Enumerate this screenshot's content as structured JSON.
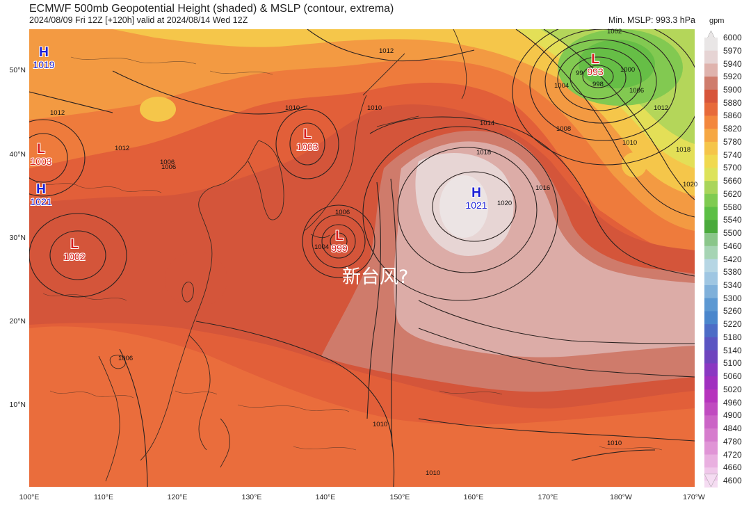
{
  "header": {
    "title": "ECMWF 500mb Geopotential Height (shaded) & MSLP (contour, extrema)",
    "subtitle": "2024/08/09 Fri 12Z [+120h] valid at 2024/08/14 Wed 12Z",
    "min_mslp": "Min. MSLP: 993.3 hPa"
  },
  "colorbar": {
    "unit": "gpm",
    "levels": [
      "6000",
      "5970",
      "5940",
      "5920",
      "5900",
      "5880",
      "5860",
      "5820",
      "5780",
      "5740",
      "5700",
      "5660",
      "5620",
      "5580",
      "5540",
      "5500",
      "5460",
      "5420",
      "5380",
      "5340",
      "5300",
      "5260",
      "5220",
      "5180",
      "5140",
      "5100",
      "5060",
      "5020",
      "4960",
      "4900",
      "4840",
      "4780",
      "4720",
      "4660",
      "4600"
    ],
    "colors": [
      "#e9e6e6",
      "#e6d4d4",
      "#dfb3ad",
      "#cf7c6c",
      "#d7553a",
      "#e76a3a",
      "#f3873d",
      "#f6a743",
      "#f5c54a",
      "#f0d94f",
      "#dde35a",
      "#a9d55a",
      "#7fcb51",
      "#5cbf45",
      "#4aaa3c",
      "#8ac68a",
      "#a6d4b4",
      "#b6d6e4",
      "#9fc6e2",
      "#7fb0da",
      "#5c98d2",
      "#4a86cc",
      "#4c6cc6",
      "#5a55c2",
      "#6e44be",
      "#8a38c2",
      "#a030c0",
      "#b634bd",
      "#c04bc0",
      "#cb64c6",
      "#d67ccd",
      "#e095d6",
      "#e9b0e0",
      "#f0c8ea",
      "#f5dcf2"
    ]
  },
  "axes": {
    "lat_labels": [
      "50°N",
      "40°N",
      "30°N",
      "20°N",
      "10°N"
    ],
    "lon_labels": [
      "100°E",
      "110°E",
      "120°E",
      "130°E",
      "140°E",
      "150°E",
      "160°E",
      "170°E",
      "180°W",
      "170°W"
    ]
  },
  "markers": [
    {
      "type": "H",
      "value": "1019",
      "kind": "high"
    },
    {
      "type": "L",
      "value": "1003",
      "kind": "low"
    },
    {
      "type": "H",
      "value": "1021",
      "kind": "high"
    },
    {
      "type": "L",
      "value": "1002",
      "kind": "low"
    },
    {
      "type": "L",
      "value": "1003",
      "kind": "low"
    },
    {
      "type": "L",
      "value": "999",
      "kind": "low"
    },
    {
      "type": "H",
      "value": "1021",
      "kind": "high"
    },
    {
      "type": "L",
      "value": "993",
      "kind": "low"
    }
  ],
  "contour_labels": [
    "1012",
    "1002",
    "1004",
    "1006",
    "1000",
    "998",
    "99",
    "1008",
    "1010",
    "1012",
    "1018",
    "1014",
    "1018",
    "1016",
    "1020",
    "1006",
    "1004",
    "1010",
    "1012",
    "1006",
    "1012",
    "1006",
    "1010",
    "1010",
    "1010",
    "1010",
    "1006",
    "1020"
  ],
  "annotation": "新台风?"
}
